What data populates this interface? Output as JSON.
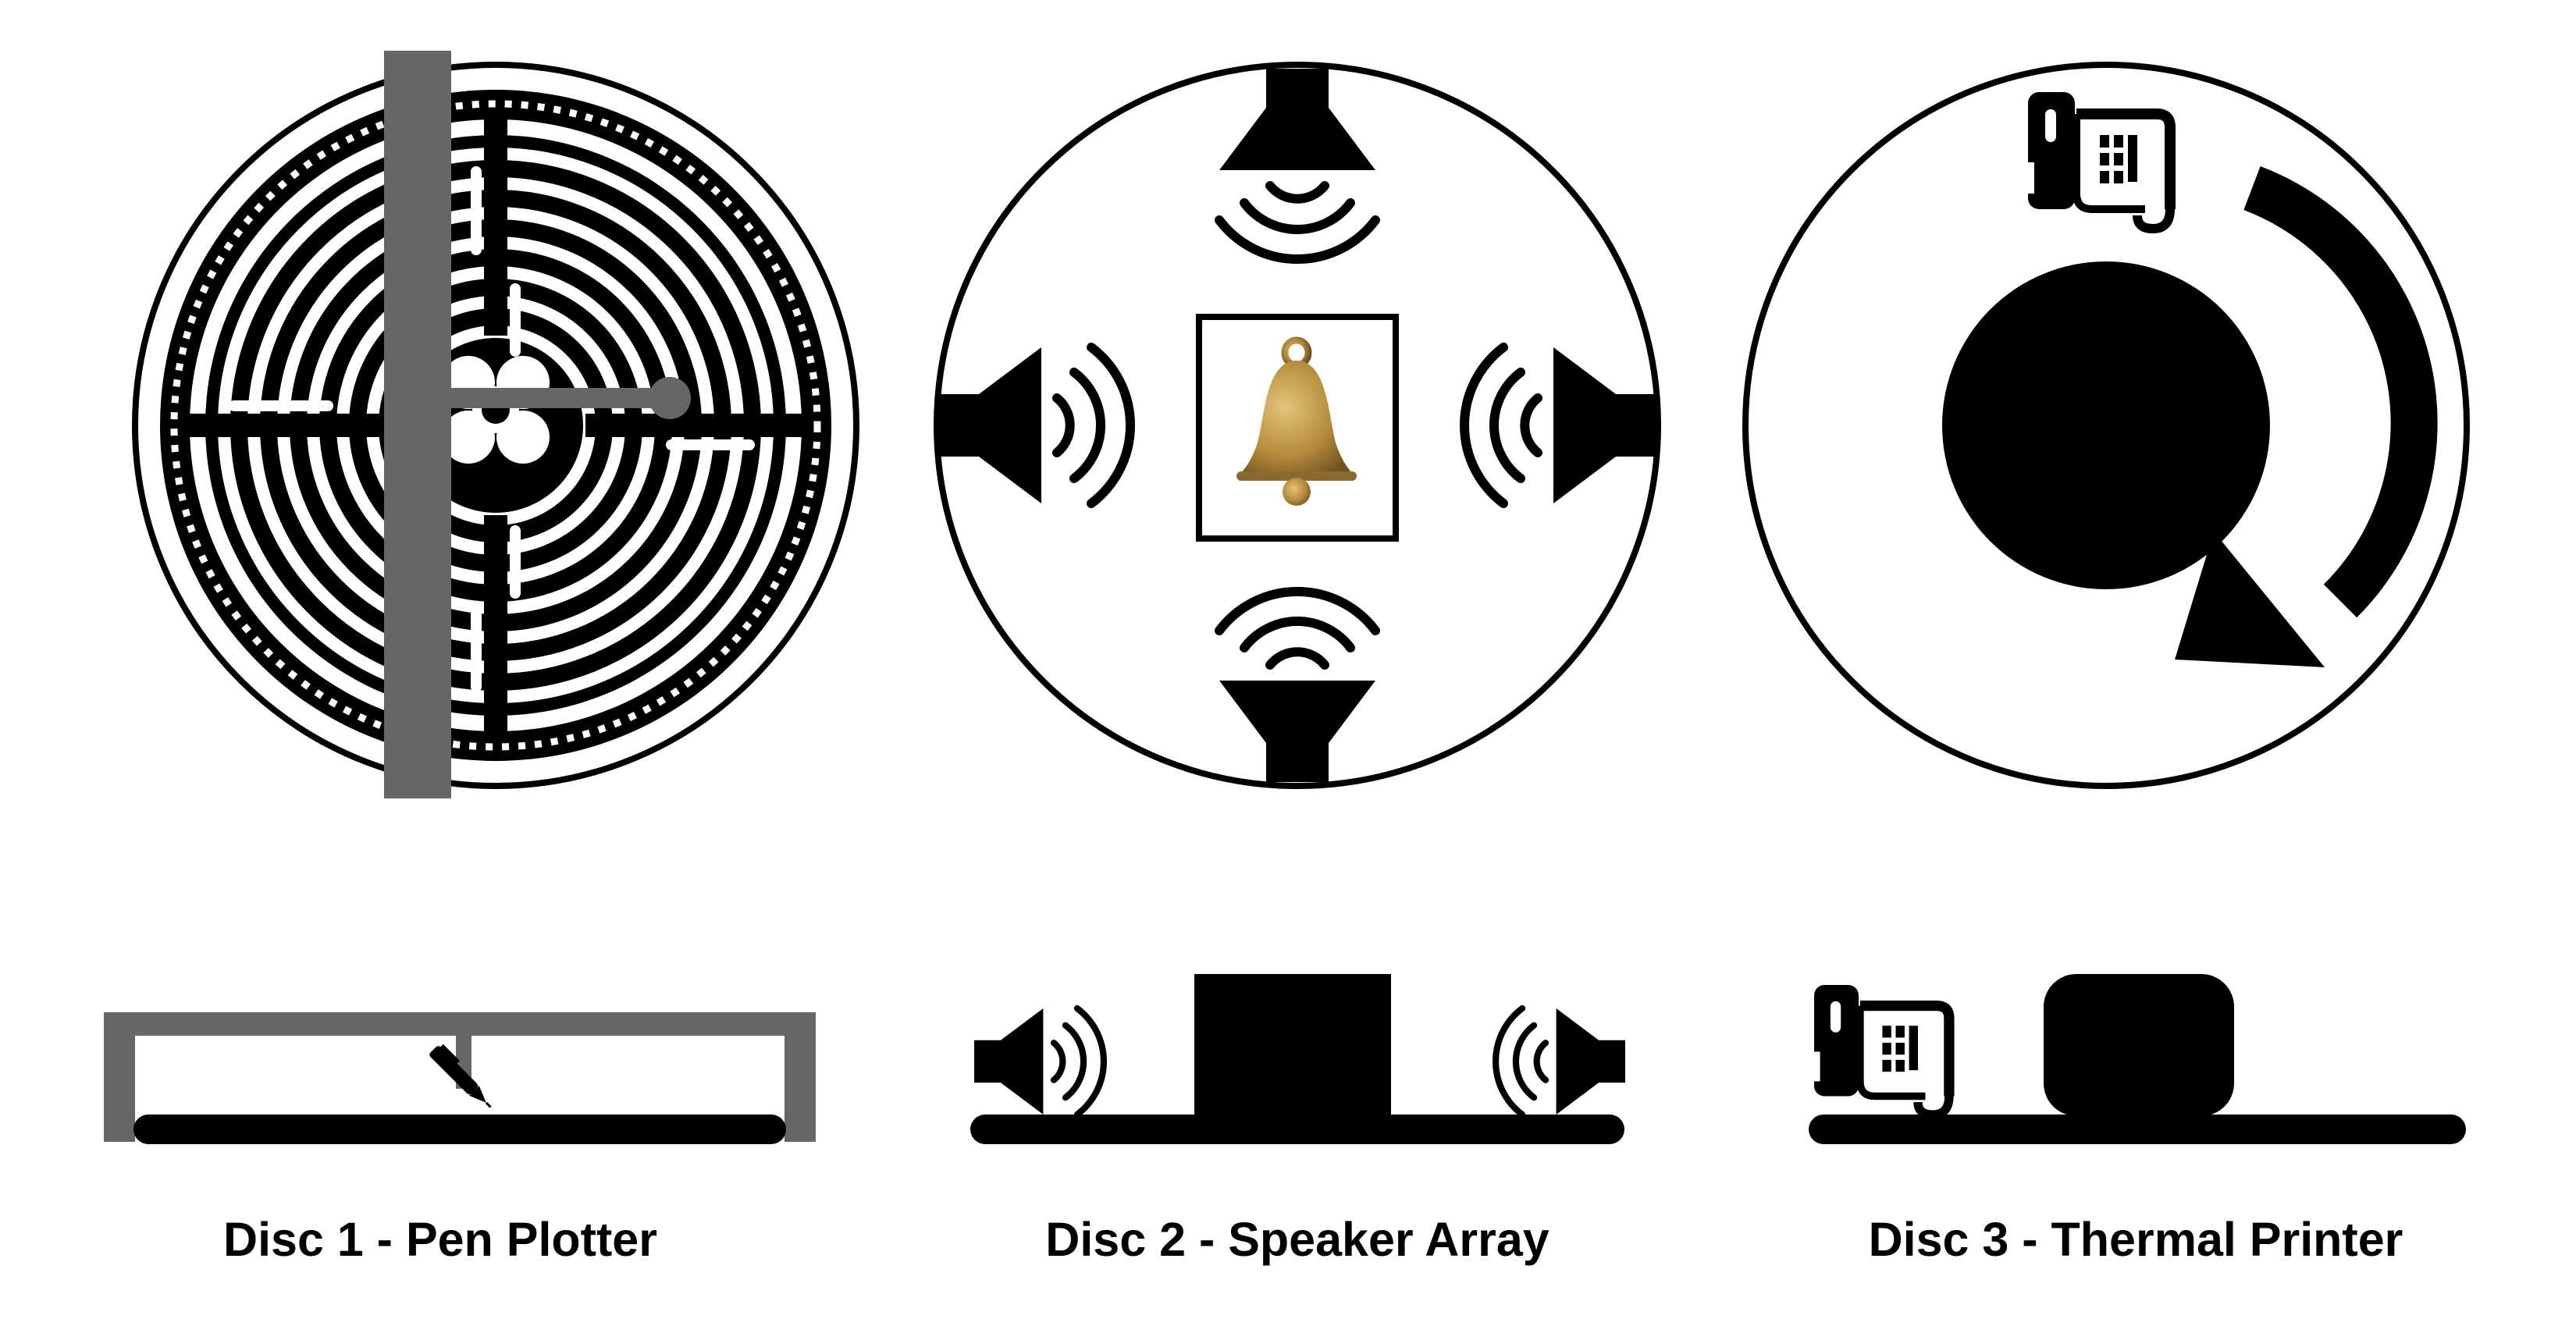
{
  "discs": [
    {
      "caption": "Disc 1 - Pen Plotter",
      "device": "pen plotter",
      "disc_view": "labyrinth pattern with gantry arm",
      "side_view": "gantry over disc with pen"
    },
    {
      "caption": "Disc 2 - Speaker Array",
      "device": "speaker array",
      "disc_view": "four speakers facing center bell",
      "side_view": "two speakers beside central box"
    },
    {
      "caption": "Disc 3 - Thermal Printer",
      "device": "thermal printer",
      "disc_view": "printer icon with rotating puck",
      "side_view": "printer beside puck on disc"
    }
  ],
  "colors": {
    "ink": "#000000",
    "gantry": "#666666",
    "bell": "#b48a3c",
    "background": "#ffffff"
  },
  "icons": [
    "labyrinth-icon",
    "speaker-icon",
    "bell-icon",
    "thermal-printer-icon",
    "rotation-arrow-icon",
    "pen-icon"
  ]
}
